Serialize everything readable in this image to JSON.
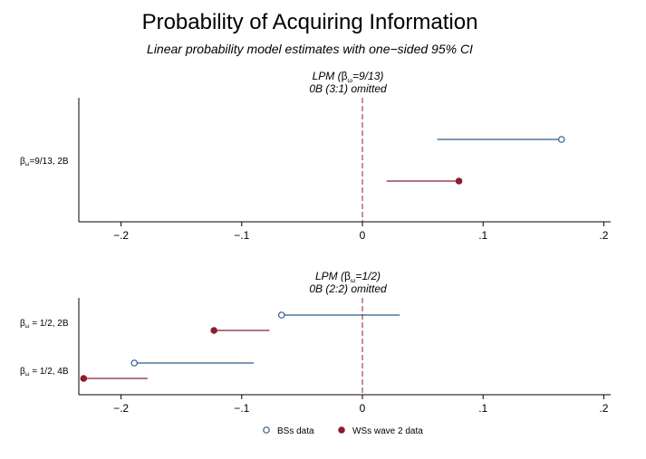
{
  "chart_data": {
    "type": "scatter",
    "title": "Probability of Acquiring Information",
    "subtitle": "Linear probability model estimates with one−sided 95% CI",
    "colors": {
      "bss": "#2f5c8a",
      "wss": "#8b1e2c",
      "ref_line": "#8b1e2c"
    },
    "xlim": [
      -0.235,
      0.205
    ],
    "xticks": [
      {
        "value": -0.2,
        "label": "−.2"
      },
      {
        "value": -0.1,
        "label": "−.1"
      },
      {
        "value": 0,
        "label": "0"
      },
      {
        "value": 0.1,
        "label": ".1"
      },
      {
        "value": 0.2,
        "label": ".2"
      }
    ],
    "legend": {
      "position": "bottom",
      "items": [
        {
          "key": "bss",
          "label": "BSs data",
          "marker": "hollow-circle"
        },
        {
          "key": "wss",
          "label": "WSs wave 2 data",
          "marker": "filled-circle"
        }
      ]
    },
    "panels": [
      {
        "title_main": "LPM (",
        "title_beta": "β",
        "title_sub": "ω",
        "title_rest": "=9/13)",
        "title_line2": "0B (3:1) omitted",
        "ylabels": [
          {
            "beta": "β",
            "sub": "ω",
            "text": "=9/13, 2B"
          }
        ],
        "groups": [
          {
            "points": [
              {
                "series": "bss",
                "estimate": 0.165,
                "ci": [
                  0.062,
                  0.165
                ]
              },
              {
                "series": "wss",
                "estimate": 0.08,
                "ci": [
                  0.02,
                  0.08
                ]
              }
            ]
          }
        ]
      },
      {
        "title_main": "LPM (",
        "title_beta": "β",
        "title_sub": "ω",
        "title_rest": "=1/2)",
        "title_line2": "0B (2:2) omitted",
        "ylabels": [
          {
            "beta": "β",
            "sub": "ω",
            "text": " = 1/2, 2B"
          },
          {
            "beta": "β",
            "sub": "ω",
            "text": " = 1/2, 4B"
          }
        ],
        "groups": [
          {
            "points": [
              {
                "series": "bss",
                "estimate": -0.067,
                "ci": [
                  -0.067,
                  0.031
                ]
              },
              {
                "series": "wss",
                "estimate": -0.123,
                "ci": [
                  -0.123,
                  -0.077
                ]
              }
            ]
          },
          {
            "points": [
              {
                "series": "bss",
                "estimate": -0.189,
                "ci": [
                  -0.189,
                  -0.09
                ]
              },
              {
                "series": "wss",
                "estimate": -0.231,
                "ci": [
                  -0.231,
                  -0.178
                ]
              }
            ]
          }
        ]
      }
    ]
  }
}
